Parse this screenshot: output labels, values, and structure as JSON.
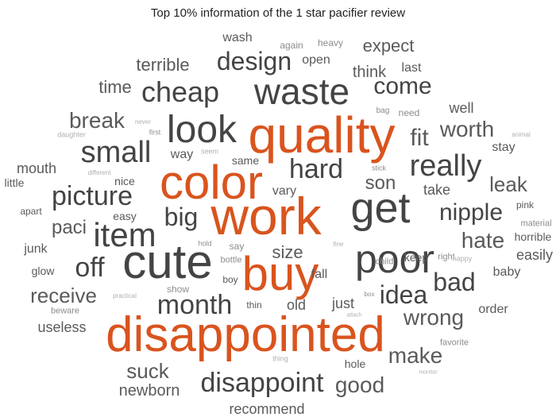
{
  "title": "Top 10% information of the 1 star pacifier review",
  "words": [
    {
      "id": "disappointed",
      "text": "disappointed"
    },
    {
      "id": "work",
      "text": "work"
    },
    {
      "id": "color",
      "text": "color"
    },
    {
      "id": "quality",
      "text": "quality"
    },
    {
      "id": "buy",
      "text": "buy"
    },
    {
      "id": "cute",
      "text": "cute"
    },
    {
      "id": "get",
      "text": "get"
    },
    {
      "id": "poor",
      "text": "poor"
    },
    {
      "id": "look",
      "text": "look"
    },
    {
      "id": "waste",
      "text": "waste"
    },
    {
      "id": "small",
      "text": "small"
    },
    {
      "id": "item",
      "text": "item"
    },
    {
      "id": "really",
      "text": "really"
    },
    {
      "id": "disappoint",
      "text": "disappoint"
    },
    {
      "id": "hard",
      "text": "hard"
    },
    {
      "id": "month",
      "text": "month"
    },
    {
      "id": "cheap",
      "text": "cheap"
    },
    {
      "id": "picture",
      "text": "picture"
    },
    {
      "id": "idea",
      "text": "idea"
    },
    {
      "id": "bad",
      "text": "bad"
    },
    {
      "id": "design",
      "text": "design"
    },
    {
      "id": "come",
      "text": "come"
    },
    {
      "id": "nipple",
      "text": "nipple"
    },
    {
      "id": "off",
      "text": "off"
    },
    {
      "id": "big",
      "text": "big"
    },
    {
      "id": "wrong",
      "text": "wrong"
    },
    {
      "id": "worth",
      "text": "worth"
    },
    {
      "id": "good",
      "text": "good"
    },
    {
      "id": "make",
      "text": "make"
    },
    {
      "id": "break",
      "text": "break"
    },
    {
      "id": "hate",
      "text": "hate"
    },
    {
      "id": "receive",
      "text": "receive"
    },
    {
      "id": "fit",
      "text": "fit"
    },
    {
      "id": "leak",
      "text": "leak"
    },
    {
      "id": "suck",
      "text": "suck"
    },
    {
      "id": "expect",
      "text": "expect"
    },
    {
      "id": "paci",
      "text": "paci"
    },
    {
      "id": "son",
      "text": "son"
    },
    {
      "id": "newborn",
      "text": "newborn"
    },
    {
      "id": "time",
      "text": "time"
    },
    {
      "id": "terrible",
      "text": "terrible"
    },
    {
      "id": "size",
      "text": "size"
    },
    {
      "id": "think",
      "text": "think"
    },
    {
      "id": "useless",
      "text": "useless"
    },
    {
      "id": "recommend",
      "text": "recommend"
    },
    {
      "id": "old",
      "text": "old"
    },
    {
      "id": "just",
      "text": "just"
    },
    {
      "id": "mouth",
      "text": "mouth"
    },
    {
      "id": "easily",
      "text": "easily"
    },
    {
      "id": "take",
      "text": "take"
    },
    {
      "id": "vary",
      "text": "vary"
    },
    {
      "id": "way",
      "text": "way"
    },
    {
      "id": "wash",
      "text": "wash"
    },
    {
      "id": "well",
      "text": "well"
    },
    {
      "id": "open",
      "text": "open"
    },
    {
      "id": "last",
      "text": "last"
    },
    {
      "id": "nice",
      "text": "nice"
    },
    {
      "id": "keep",
      "text": "keep"
    },
    {
      "id": "fall",
      "text": "fall"
    },
    {
      "id": "stay",
      "text": "stay"
    },
    {
      "id": "baby",
      "text": "baby"
    },
    {
      "id": "junk",
      "text": "junk"
    },
    {
      "id": "glow",
      "text": "glow"
    },
    {
      "id": "order",
      "text": "order"
    },
    {
      "id": "hole",
      "text": "hole"
    },
    {
      "id": "horrible",
      "text": "horrible"
    },
    {
      "id": "same",
      "text": "same"
    },
    {
      "id": "easy",
      "text": "easy"
    },
    {
      "id": "little",
      "text": "little"
    },
    {
      "id": "apart",
      "text": "apart"
    },
    {
      "id": "boy",
      "text": "boy"
    },
    {
      "id": "thin",
      "text": "thin"
    },
    {
      "id": "pink",
      "text": "pink"
    },
    {
      "id": "need",
      "text": "need"
    },
    {
      "id": "again",
      "text": "again"
    },
    {
      "id": "heavy",
      "text": "heavy"
    },
    {
      "id": "beware",
      "text": "beware"
    },
    {
      "id": "show",
      "text": "show"
    },
    {
      "id": "say",
      "text": "say"
    },
    {
      "id": "bottle",
      "text": "bottle"
    },
    {
      "id": "child",
      "text": "child"
    },
    {
      "id": "right",
      "text": "right"
    },
    {
      "id": "material",
      "text": "material"
    },
    {
      "id": "favorite",
      "text": "favorite"
    },
    {
      "id": "bag",
      "text": "bag"
    },
    {
      "id": "first",
      "text": "first"
    },
    {
      "id": "seem",
      "text": "seem"
    },
    {
      "id": "never",
      "text": "never"
    },
    {
      "id": "daughter",
      "text": "daughter"
    },
    {
      "id": "different",
      "text": "different"
    },
    {
      "id": "stick",
      "text": "stick"
    },
    {
      "id": "animal",
      "text": "animal"
    },
    {
      "id": "hold",
      "text": "hold"
    },
    {
      "id": "fine",
      "text": "fine"
    },
    {
      "id": "happy",
      "text": "happy"
    },
    {
      "id": "practical",
      "text": "practical"
    },
    {
      "id": "box",
      "text": "box"
    },
    {
      "id": "attach",
      "text": "attach"
    },
    {
      "id": "thing",
      "text": "thing"
    },
    {
      "id": "monitor",
      "text": "monitor"
    }
  ]
}
